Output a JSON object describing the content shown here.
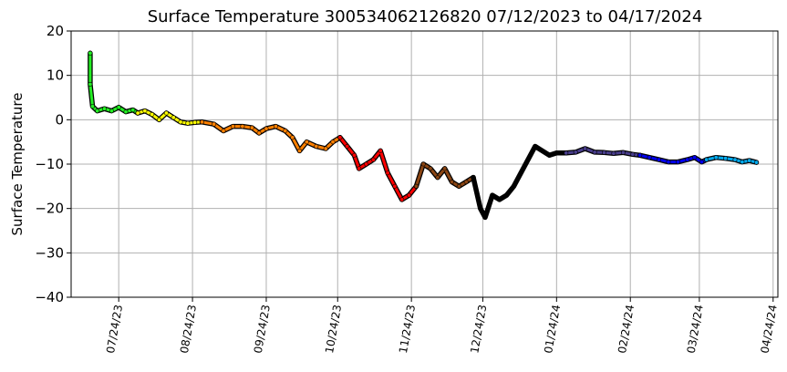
{
  "chart_data": {
    "type": "scatter",
    "title": "Surface Temperature 300534062126820  07/12/2023 to 04/17/2024",
    "xlabel": "",
    "ylabel": "Surface Temperature",
    "x_ticks": [
      "07/24/23",
      "08/24/23",
      "09/24/23",
      "10/24/23",
      "11/24/23",
      "12/24/23",
      "01/24/24",
      "02/24/24",
      "03/24/24",
      "04/24/24"
    ],
    "y_ticks": [
      "20",
      "10",
      "0",
      "−10",
      "−20",
      "−30",
      "−40"
    ],
    "xlim": [
      "2023-07-04",
      "2024-04-26"
    ],
    "ylim": [
      -40,
      20
    ],
    "grid": true,
    "series": [
      {
        "color": "#22ee22",
        "points": [
          [
            "2023-07-12",
            15
          ],
          [
            "2023-07-12",
            8
          ],
          [
            "2023-07-13",
            3
          ],
          [
            "2023-07-15",
            2
          ],
          [
            "2023-07-18",
            2.5
          ],
          [
            "2023-07-21",
            2
          ],
          [
            "2023-07-24",
            2.8
          ],
          [
            "2023-07-27",
            1.8
          ],
          [
            "2023-07-30",
            2.2
          ],
          [
            "2023-08-01",
            1.5
          ]
        ]
      },
      {
        "color": "#ffff00",
        "points": [
          [
            "2023-08-01",
            1.5
          ],
          [
            "2023-08-04",
            2
          ],
          [
            "2023-08-07",
            1.2
          ],
          [
            "2023-08-10",
            0
          ],
          [
            "2023-08-13",
            1.5
          ],
          [
            "2023-08-16",
            0.5
          ],
          [
            "2023-08-19",
            -0.5
          ],
          [
            "2023-08-22",
            -0.8
          ],
          [
            "2023-08-25",
            -0.6
          ],
          [
            "2023-08-28",
            -0.5
          ]
        ]
      },
      {
        "color": "#ff8000",
        "points": [
          [
            "2023-08-28",
            -0.5
          ],
          [
            "2023-09-02",
            -1
          ],
          [
            "2023-09-06",
            -2.5
          ],
          [
            "2023-09-10",
            -1.5
          ],
          [
            "2023-09-14",
            -1.5
          ],
          [
            "2023-09-18",
            -1.8
          ],
          [
            "2023-09-21",
            -3
          ],
          [
            "2023-09-24",
            -2
          ],
          [
            "2023-09-28",
            -1.5
          ],
          [
            "2023-10-02",
            -2.5
          ],
          [
            "2023-10-05",
            -4
          ],
          [
            "2023-10-08",
            -7
          ],
          [
            "2023-10-11",
            -5
          ],
          [
            "2023-10-15",
            -6
          ],
          [
            "2023-10-19",
            -6.5
          ],
          [
            "2023-10-22",
            -5
          ],
          [
            "2023-10-25",
            -4
          ]
        ]
      },
      {
        "color": "#ff0000",
        "points": [
          [
            "2023-10-25",
            -4
          ],
          [
            "2023-10-28",
            -6
          ],
          [
            "2023-10-31",
            -8
          ],
          [
            "2023-11-02",
            -11
          ],
          [
            "2023-11-05",
            -10
          ],
          [
            "2023-11-08",
            -9
          ],
          [
            "2023-11-11",
            -7
          ],
          [
            "2023-11-14",
            -12
          ],
          [
            "2023-11-17",
            -15
          ],
          [
            "2023-11-20",
            -18
          ],
          [
            "2023-11-23",
            -17
          ],
          [
            "2023-11-26",
            -15
          ]
        ]
      },
      {
        "color": "#8b4513",
        "points": [
          [
            "2023-11-26",
            -15
          ],
          [
            "2023-11-29",
            -10
          ],
          [
            "2023-12-02",
            -11
          ],
          [
            "2023-12-05",
            -13
          ],
          [
            "2023-12-08",
            -11
          ],
          [
            "2023-12-11",
            -14
          ],
          [
            "2023-12-14",
            -15
          ],
          [
            "2023-12-17",
            -14
          ],
          [
            "2023-12-20",
            -13
          ]
        ]
      },
      {
        "color": "#000000",
        "points": [
          [
            "2023-12-20",
            -13
          ],
          [
            "2023-12-23",
            -20
          ],
          [
            "2023-12-25",
            -22
          ],
          [
            "2023-12-28",
            -17
          ],
          [
            "2023-12-31",
            -18
          ],
          [
            "2024-01-03",
            -17
          ],
          [
            "2024-01-06",
            -15
          ],
          [
            "2024-01-09",
            -12
          ],
          [
            "2024-01-15",
            -6
          ],
          [
            "2024-01-18",
            -7
          ],
          [
            "2024-01-21",
            -8
          ],
          [
            "2024-01-24",
            -7.5
          ],
          [
            "2024-01-28",
            -7.5
          ]
        ]
      },
      {
        "color": "#483d8b",
        "points": [
          [
            "2024-01-28",
            -7.5
          ],
          [
            "2024-02-01",
            -7.3
          ],
          [
            "2024-02-05",
            -6.5
          ],
          [
            "2024-02-09",
            -7.3
          ],
          [
            "2024-02-13",
            -7.4
          ],
          [
            "2024-02-17",
            -7.6
          ],
          [
            "2024-02-21",
            -7.4
          ],
          [
            "2024-02-25",
            -7.8
          ],
          [
            "2024-02-28",
            -8
          ]
        ]
      },
      {
        "color": "#0000ee",
        "points": [
          [
            "2024-02-28",
            -8
          ],
          [
            "2024-03-03",
            -8.5
          ],
          [
            "2024-03-07",
            -9
          ],
          [
            "2024-03-11",
            -9.5
          ],
          [
            "2024-03-15",
            -9.5
          ],
          [
            "2024-03-19",
            -9
          ],
          [
            "2024-03-22",
            -8.5
          ],
          [
            "2024-03-25",
            -9.5
          ],
          [
            "2024-03-27",
            -9
          ]
        ]
      },
      {
        "color": "#00aaee",
        "points": [
          [
            "2024-03-27",
            -9
          ],
          [
            "2024-03-31",
            -8.5
          ],
          [
            "2024-04-04",
            -8.7
          ],
          [
            "2024-04-08",
            -9
          ],
          [
            "2024-04-11",
            -9.5
          ],
          [
            "2024-04-14",
            -9.2
          ],
          [
            "2024-04-17",
            -9.6
          ]
        ]
      }
    ]
  }
}
